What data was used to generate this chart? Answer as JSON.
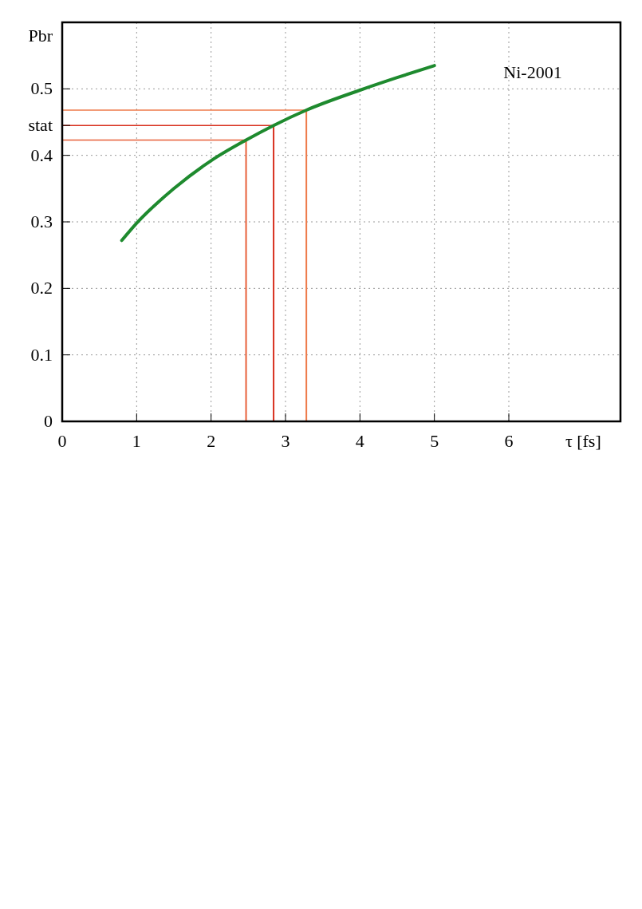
{
  "chart_data": {
    "type": "line",
    "xlabel": "τ [fs]",
    "ylabel": "Pbr",
    "x": [
      0.8,
      1,
      1.5,
      2,
      2.47,
      2.84,
      3.28,
      4,
      4.5,
      5
    ],
    "series": [
      {
        "color": "#1e8a2e",
        "values": [
          0.272,
          0.298,
          0.35,
          0.392,
          0.423,
          0.445,
          0.468,
          0.498,
          0.517,
          0.535
        ]
      }
    ],
    "xlim": [
      0,
      7.5
    ],
    "xticks": [
      0,
      1,
      2,
      3,
      4,
      5,
      6
    ],
    "ylim": [
      0,
      0.6
    ],
    "yticks": [
      0,
      0.1,
      0.2,
      0.3,
      {
        "value": 0.445,
        "label": "stat"
      },
      0.4,
      0.5
    ],
    "grid": true,
    "marker": "none",
    "line_style": "solid",
    "ref_lines": [
      {
        "axis": "x",
        "value": 2.47,
        "color": "#e8603a"
      },
      {
        "axis": "x",
        "value": 2.84,
        "color": "#d8301e"
      },
      {
        "axis": "x",
        "value": 3.28,
        "color": "#ee7a4a"
      },
      {
        "axis": "y",
        "value": 0.423,
        "color": "#e8603a"
      },
      {
        "axis": "y",
        "value": 0.445,
        "color": "#d8301e"
      },
      {
        "axis": "y",
        "value": 0.468,
        "color": "#ee7a4a"
      }
    ],
    "annotations": [
      "Ni-2001"
    ]
  }
}
